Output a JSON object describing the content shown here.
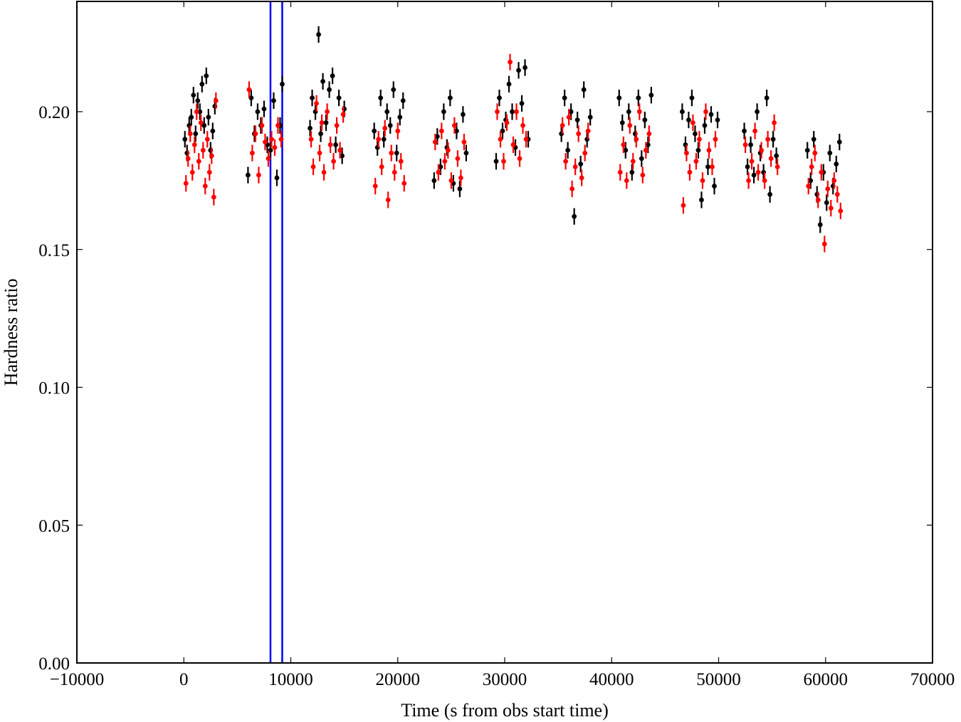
{
  "chart_data": {
    "type": "scatter",
    "xlabel": "Time (s from obs start time)",
    "ylabel": "Hardness ratio",
    "xlim": [
      -10000,
      70000
    ],
    "ylim": [
      0.0,
      0.24
    ],
    "xticks": [
      -10000,
      0,
      10000,
      20000,
      30000,
      40000,
      50000,
      60000,
      70000
    ],
    "xtick_labels": [
      "−10000",
      "0",
      "10000",
      "20000",
      "30000",
      "40000",
      "50000",
      "60000",
      "70000"
    ],
    "yticks": [
      0.0,
      0.05,
      0.1,
      0.15,
      0.2
    ],
    "ytick_labels": [
      "0.00",
      "0.05",
      "0.10",
      "0.15",
      "0.20"
    ],
    "grid": false,
    "legend": "none",
    "vertical_lines": {
      "x": [
        8100,
        9200
      ],
      "color": "#0000ff"
    },
    "series": [
      {
        "color": "#000000",
        "yerr": 0.003,
        "x": [
          100,
          300,
          500,
          700,
          900,
          1100,
          1300,
          1500,
          1700,
          1900,
          2100,
          2300,
          2500,
          2700,
          2900,
          6000,
          6300,
          6600,
          6900,
          7200,
          7500,
          7800,
          8100,
          8400,
          8700,
          9000,
          9200,
          11800,
          12000,
          12300,
          12600,
          12800,
          13000,
          13300,
          13600,
          13900,
          14200,
          14500,
          14800,
          15000,
          17800,
          18100,
          18400,
          18700,
          19000,
          19300,
          19600,
          19900,
          20200,
          20500,
          23400,
          23700,
          24000,
          24300,
          24600,
          24900,
          25200,
          25500,
          25800,
          26100,
          26400,
          29200,
          29500,
          29800,
          30100,
          30400,
          30700,
          31000,
          31300,
          31600,
          31900,
          32200,
          35300,
          35600,
          35900,
          36200,
          36500,
          36800,
          37100,
          37400,
          37700,
          38000,
          40700,
          41000,
          41300,
          41600,
          41900,
          42200,
          42500,
          42800,
          43100,
          43400,
          43700,
          46600,
          46900,
          47200,
          47500,
          47800,
          48100,
          48400,
          48700,
          49000,
          49300,
          49600,
          49900,
          52400,
          52700,
          53000,
          53300,
          53600,
          53900,
          54200,
          54500,
          54800,
          55100,
          55400,
          58300,
          58600,
          58900,
          59200,
          59500,
          59800,
          60100,
          60400,
          60700,
          61000,
          61300
        ],
        "y": [
          0.19,
          0.185,
          0.195,
          0.198,
          0.206,
          0.192,
          0.204,
          0.2,
          0.21,
          0.195,
          0.213,
          0.198,
          0.186,
          0.193,
          0.202,
          0.177,
          0.205,
          0.192,
          0.2,
          0.195,
          0.201,
          0.188,
          0.186,
          0.204,
          0.176,
          0.195,
          0.21,
          0.194,
          0.205,
          0.2,
          0.228,
          0.192,
          0.211,
          0.196,
          0.208,
          0.213,
          0.188,
          0.205,
          0.184,
          0.201,
          0.193,
          0.187,
          0.205,
          0.19,
          0.2,
          0.195,
          0.208,
          0.185,
          0.198,
          0.204,
          0.175,
          0.191,
          0.18,
          0.2,
          0.187,
          0.205,
          0.174,
          0.193,
          0.172,
          0.199,
          0.185,
          0.182,
          0.205,
          0.193,
          0.197,
          0.21,
          0.2,
          0.187,
          0.215,
          0.203,
          0.216,
          0.19,
          0.192,
          0.205,
          0.186,
          0.2,
          0.162,
          0.197,
          0.181,
          0.208,
          0.19,
          0.198,
          0.205,
          0.196,
          0.186,
          0.2,
          0.178,
          0.192,
          0.205,
          0.183,
          0.197,
          0.188,
          0.206,
          0.2,
          0.188,
          0.197,
          0.205,
          0.192,
          0.186,
          0.168,
          0.195,
          0.18,
          0.199,
          0.173,
          0.197,
          0.193,
          0.18,
          0.188,
          0.177,
          0.2,
          0.185,
          0.178,
          0.205,
          0.17,
          0.19,
          0.184,
          0.186,
          0.175,
          0.19,
          0.17,
          0.159,
          0.178,
          0.167,
          0.185,
          0.173,
          0.181,
          0.189
        ]
      },
      {
        "color": "#ff0000",
        "yerr": 0.003,
        "x": [
          200,
          400,
          600,
          800,
          1000,
          1200,
          1400,
          1600,
          1800,
          2000,
          2200,
          2400,
          2600,
          2800,
          3000,
          6100,
          6400,
          6700,
          7000,
          7300,
          7600,
          7900,
          8200,
          8500,
          8800,
          9100,
          11900,
          12100,
          12400,
          12700,
          12900,
          13100,
          13400,
          13700,
          14000,
          14300,
          14600,
          14900,
          17900,
          18200,
          18500,
          18800,
          19100,
          19400,
          19700,
          20000,
          20300,
          20600,
          23500,
          23800,
          24100,
          24400,
          24700,
          25000,
          25300,
          25600,
          25900,
          26200,
          29300,
          29600,
          29900,
          30200,
          30500,
          30800,
          31100,
          31400,
          31700,
          32000,
          35400,
          35700,
          36000,
          36300,
          36600,
          36900,
          37200,
          37500,
          37800,
          40800,
          41100,
          41400,
          41700,
          42000,
          42300,
          42600,
          42900,
          43200,
          43500,
          46700,
          47000,
          47300,
          47600,
          47900,
          48200,
          48500,
          48800,
          49100,
          49400,
          49700,
          52500,
          52800,
          53100,
          53400,
          53700,
          54000,
          54300,
          54600,
          54900,
          55200,
          55500,
          58400,
          58700,
          59000,
          59300,
          59600,
          59900,
          60200,
          60500,
          60800,
          61100,
          61400
        ],
        "y": [
          0.174,
          0.183,
          0.192,
          0.178,
          0.188,
          0.2,
          0.182,
          0.196,
          0.186,
          0.173,
          0.19,
          0.178,
          0.184,
          0.169,
          0.204,
          0.208,
          0.185,
          0.192,
          0.177,
          0.195,
          0.189,
          0.183,
          0.19,
          0.187,
          0.195,
          0.19,
          0.19,
          0.18,
          0.203,
          0.185,
          0.196,
          0.178,
          0.2,
          0.188,
          0.182,
          0.195,
          0.186,
          0.199,
          0.173,
          0.19,
          0.18,
          0.194,
          0.168,
          0.185,
          0.178,
          0.193,
          0.182,
          0.174,
          0.189,
          0.178,
          0.193,
          0.182,
          0.186,
          0.175,
          0.195,
          0.183,
          0.176,
          0.189,
          0.2,
          0.19,
          0.182,
          0.196,
          0.218,
          0.188,
          0.2,
          0.183,
          0.195,
          0.19,
          0.195,
          0.182,
          0.198,
          0.172,
          0.18,
          0.192,
          0.176,
          0.185,
          0.193,
          0.178,
          0.188,
          0.175,
          0.195,
          0.182,
          0.19,
          0.2,
          0.177,
          0.186,
          0.192,
          0.166,
          0.185,
          0.178,
          0.196,
          0.182,
          0.19,
          0.175,
          0.2,
          0.186,
          0.18,
          0.19,
          0.188,
          0.175,
          0.182,
          0.193,
          0.178,
          0.186,
          0.175,
          0.19,
          0.183,
          0.196,
          0.18,
          0.173,
          0.18,
          0.185,
          0.168,
          0.178,
          0.152,
          0.172,
          0.165,
          0.175,
          0.17,
          0.164
        ]
      }
    ]
  }
}
